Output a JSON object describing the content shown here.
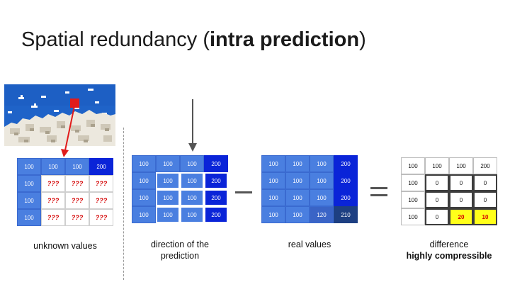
{
  "title": {
    "prefix": "Spatial redundancy (",
    "bold": "intra prediction",
    "suffix": ")"
  },
  "grids": {
    "unknown": [
      [
        "100",
        "100",
        "100",
        "200"
      ],
      [
        "100",
        "???",
        "???",
        "???"
      ],
      [
        "100",
        "???",
        "???",
        "???"
      ],
      [
        "100",
        "???",
        "???",
        "???"
      ]
    ],
    "direction": [
      [
        "100",
        "100",
        "100",
        "200"
      ],
      [
        "100",
        "100",
        "100",
        "200"
      ],
      [
        "100",
        "100",
        "100",
        "200"
      ],
      [
        "100",
        "100",
        "100",
        "200"
      ]
    ],
    "real": [
      [
        "100",
        "100",
        "100",
        "200"
      ],
      [
        "100",
        "100",
        "100",
        "200"
      ],
      [
        "100",
        "100",
        "100",
        "200"
      ],
      [
        "100",
        "100",
        "120",
        "210"
      ]
    ],
    "difference": [
      [
        "100",
        "100",
        "100",
        "200"
      ],
      [
        "100",
        "0",
        "0",
        "0"
      ],
      [
        "100",
        "0",
        "0",
        "0"
      ],
      [
        "100",
        "0",
        "20",
        "10"
      ]
    ]
  },
  "captions": {
    "unknown": "unknown values",
    "direction_line1": "direction of the",
    "direction_line2": "prediction",
    "real": "real values",
    "difference_line1": "difference",
    "difference_line2": "highly compressible"
  },
  "colors": {
    "block_blue": "#4a7fe0",
    "block_dark_blue": "#0a24d8",
    "unknown_marker": "#d40000",
    "highlight_yellow": "#ffff1a",
    "arrow_red": "#e11b1b",
    "arrow_gray": "#555555"
  },
  "icons": {
    "image": "pixel-sky-clouds-image",
    "arrow_down": "down-arrow-icon",
    "arrow_red": "red-arrow-icon",
    "minus": "minus-sign-icon",
    "equals": "equals-sign-icon"
  }
}
